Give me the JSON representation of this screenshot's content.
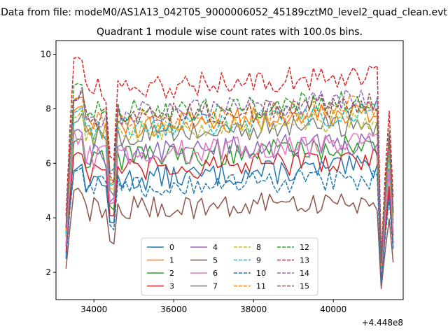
{
  "chart_data": {
    "type": "line",
    "suptitle": "Data from file: modeM0/AS1A13_042T05_9000006052_45189cztM0_level2_quad_clean.evt",
    "title": "Quadrant 1 module wise count rates with 100.0s bins.",
    "xlabel": "",
    "ylabel": "",
    "x_offset_label": "+4.448e8",
    "xlim": [
      33050,
      41750
    ],
    "ylim": [
      1.0,
      10.5
    ],
    "xticks": [
      34000,
      36000,
      38000,
      40000
    ],
    "yticks": [
      2,
      4,
      6,
      8,
      10
    ],
    "x_start": 33300,
    "x_step": 100,
    "legend_loc": "lower center",
    "series": [
      {
        "name": "0",
        "color": "#1f77b4",
        "dash": "solid",
        "base": 5.3,
        "slope": 0.1
      },
      {
        "name": "1",
        "color": "#ff7f0e",
        "dash": "solid",
        "base": 7.2,
        "slope": 0.12
      },
      {
        "name": "2",
        "color": "#2ca02c",
        "dash": "solid",
        "base": 6.1,
        "slope": 0.1
      },
      {
        "name": "3",
        "color": "#d62728",
        "dash": "solid",
        "base": 5.6,
        "slope": 0.1
      },
      {
        "name": "4",
        "color": "#9467bd",
        "dash": "solid",
        "base": 6.3,
        "slope": 0.08
      },
      {
        "name": "5",
        "color": "#8c564b",
        "dash": "solid",
        "base": 4.3,
        "slope": 0.05
      },
      {
        "name": "6",
        "color": "#e377c2",
        "dash": "solid",
        "base": 6.2,
        "slope": 0.1
      },
      {
        "name": "7",
        "color": "#7f7f7f",
        "dash": "solid",
        "base": 6.9,
        "slope": 0.1
      },
      {
        "name": "8",
        "color": "#bcbd22",
        "dash": "dashed",
        "base": 7.0,
        "slope": 0.12
      },
      {
        "name": "9",
        "color": "#17becf",
        "dash": "dashed",
        "base": 7.1,
        "slope": 0.14
      },
      {
        "name": "10",
        "color": "#1f77b4",
        "dash": "dashed",
        "base": 5.1,
        "slope": 0.05
      },
      {
        "name": "11",
        "color": "#ff7f0e",
        "dash": "dashed",
        "base": 7.4,
        "slope": 0.12
      },
      {
        "name": "12",
        "color": "#2ca02c",
        "dash": "dashed",
        "base": 7.8,
        "slope": 0.08
      },
      {
        "name": "13",
        "color": "#d62728",
        "dash": "dashed",
        "base": 8.6,
        "slope": 0.12
      },
      {
        "name": "14",
        "color": "#9467bd",
        "dash": "dashed",
        "base": 7.7,
        "slope": 0.12
      },
      {
        "name": "15",
        "color": "#8c564b",
        "dash": "dashed",
        "base": 7.6,
        "slope": 0.1
      }
    ]
  }
}
